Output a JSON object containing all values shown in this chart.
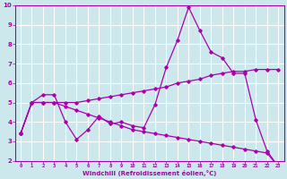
{
  "xlabel": "Windchill (Refroidissement éolien,°C)",
  "bg_color": "#cce8ec",
  "line_color": "#aa00aa",
  "grid_color": "#ffffff",
  "xlim": [
    -0.5,
    23.5
  ],
  "ylim": [
    2,
    10
  ],
  "xticks": [
    0,
    1,
    2,
    3,
    4,
    5,
    6,
    7,
    8,
    9,
    10,
    11,
    12,
    13,
    14,
    15,
    16,
    17,
    18,
    19,
    20,
    21,
    22,
    23
  ],
  "yticks": [
    2,
    3,
    4,
    5,
    6,
    7,
    8,
    9,
    10
  ],
  "line1_x": [
    0,
    1,
    2,
    3,
    4,
    5,
    6,
    7,
    8,
    9,
    10,
    11,
    12,
    13,
    14,
    15,
    16,
    17,
    18,
    19,
    20,
    21,
    22,
    23
  ],
  "line1_y": [
    3.4,
    5.0,
    5.4,
    5.4,
    4.0,
    3.1,
    3.6,
    4.3,
    3.9,
    4.0,
    3.8,
    3.7,
    4.9,
    6.8,
    8.2,
    9.9,
    8.7,
    7.6,
    7.3,
    6.5,
    6.5,
    4.1,
    2.5,
    1.7
  ],
  "line2_x": [
    0,
    1,
    2,
    3,
    4,
    5,
    6,
    7,
    8,
    9,
    10,
    11,
    12,
    13,
    14,
    15,
    16,
    17,
    18,
    19,
    20,
    21,
    22,
    23
  ],
  "line2_y": [
    3.4,
    5.0,
    5.0,
    5.0,
    5.0,
    5.0,
    5.1,
    5.2,
    5.3,
    5.4,
    5.5,
    5.6,
    5.7,
    5.8,
    6.0,
    6.1,
    6.2,
    6.4,
    6.5,
    6.6,
    6.6,
    6.7,
    6.7,
    6.7
  ],
  "line3_x": [
    0,
    1,
    2,
    3,
    4,
    5,
    6,
    7,
    8,
    9,
    10,
    11,
    12,
    13,
    14,
    15,
    16,
    17,
    18,
    19,
    20,
    21,
    22,
    23
  ],
  "line3_y": [
    3.4,
    5.0,
    5.0,
    5.0,
    4.8,
    4.6,
    4.4,
    4.2,
    4.0,
    3.8,
    3.6,
    3.5,
    3.4,
    3.3,
    3.2,
    3.1,
    3.0,
    2.9,
    2.8,
    2.7,
    2.6,
    2.5,
    2.4,
    1.7
  ]
}
